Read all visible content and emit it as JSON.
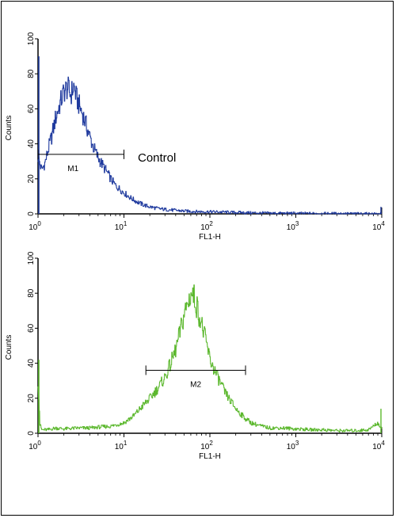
{
  "chart_data": [
    {
      "type": "line",
      "name": "top-histogram",
      "xlabel": "FL1-H",
      "ylabel": "Counts",
      "xscale": "log",
      "xlim": [
        1,
        10000
      ],
      "ylim": [
        0,
        100
      ],
      "yticks": [
        "0",
        "20",
        "40",
        "60",
        "80",
        "100"
      ],
      "xticks": [
        {
          "base": "10",
          "exp": "0"
        },
        {
          "base": "10",
          "exp": "1"
        },
        {
          "base": "10",
          "exp": "2"
        },
        {
          "base": "10",
          "exp": "3"
        },
        {
          "base": "10",
          "exp": "4"
        }
      ],
      "color": "#1f3a9e",
      "annotation": "Control",
      "gate": {
        "label": "M1",
        "x_start": 1,
        "x_end": 10,
        "y": 34
      },
      "series": [
        {
          "x": [
            1.0,
            1.1,
            1.2,
            1.3,
            1.45,
            1.6,
            1.8,
            2.0,
            2.2,
            2.4,
            2.6,
            2.8,
            3.0,
            3.3,
            3.6,
            4.0,
            4.4,
            5.0,
            5.6,
            6.3,
            7.0,
            8.0,
            9.0,
            10,
            12,
            14,
            17,
            20,
            25,
            30,
            40,
            50,
            70,
            100,
            150,
            200,
            300,
            500,
            1000,
            2000,
            5000,
            10000
          ],
          "y": [
            32,
            25,
            29,
            36,
            45,
            55,
            63,
            70,
            72,
            68,
            73,
            66,
            62,
            57,
            51,
            44,
            38,
            32,
            28,
            24,
            20,
            16,
            14,
            12,
            9,
            7,
            5,
            4,
            3,
            2.5,
            2,
            1.6,
            1.3,
            1.2,
            1,
            0.8,
            0.6,
            0.4,
            0.3,
            0.2,
            0.1,
            0
          ]
        }
      ]
    },
    {
      "type": "line",
      "name": "bottom-histogram",
      "xlabel": "FL1-H",
      "ylabel": "Counts",
      "xscale": "log",
      "xlim": [
        1,
        10000
      ],
      "ylim": [
        0,
        100
      ],
      "yticks": [
        "0",
        "20",
        "40",
        "60",
        "80",
        "100"
      ],
      "xticks": [
        {
          "base": "10",
          "exp": "0"
        },
        {
          "base": "10",
          "exp": "1"
        },
        {
          "base": "10",
          "exp": "2"
        },
        {
          "base": "10",
          "exp": "3"
        },
        {
          "base": "10",
          "exp": "4"
        }
      ],
      "color": "#5cb82e",
      "annotation": "",
      "gate": {
        "label": "M2",
        "x_start": 18,
        "x_end": 260,
        "y": 36
      },
      "series": [
        {
          "x": [
            1.0,
            1.05,
            1.1,
            1.3,
            1.6,
            2,
            3,
            4,
            5,
            7,
            10,
            13,
            16,
            20,
            25,
            30,
            35,
            40,
            45,
            50,
            55,
            60,
            65,
            70,
            80,
            90,
            100,
            120,
            150,
            200,
            250,
            300,
            400,
            500,
            700,
            1000,
            1500,
            2000,
            3000,
            5000,
            7000,
            9000,
            10000
          ],
          "y": [
            30,
            5,
            2,
            2,
            3,
            2.5,
            3,
            3,
            3.5,
            4,
            6,
            10,
            15,
            20,
            26,
            32,
            40,
            48,
            58,
            68,
            74,
            80,
            78,
            73,
            62,
            52,
            42,
            33,
            23,
            14,
            9,
            6,
            4,
            3,
            3,
            2.5,
            2,
            2,
            1.5,
            1.5,
            2,
            6,
            2
          ]
        }
      ]
    }
  ]
}
